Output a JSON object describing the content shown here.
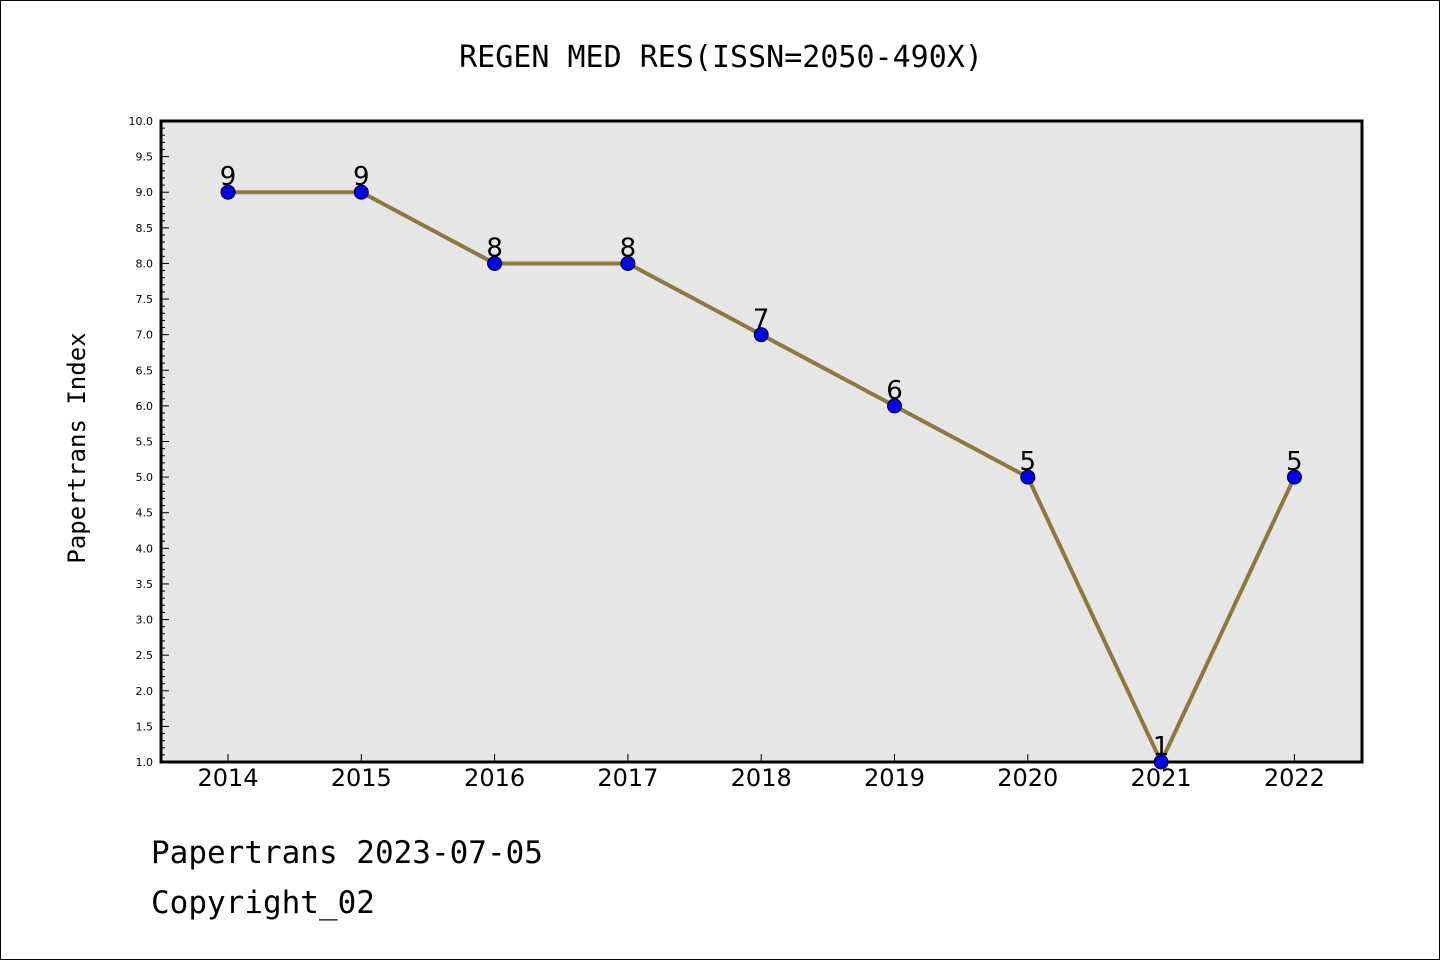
{
  "chart_data": {
    "type": "line",
    "title": "REGEN MED RES(ISSN=2050-490X)",
    "xlabel": "",
    "ylabel": "Papertrans Index",
    "categories": [
      "2014",
      "2015",
      "2016",
      "2017",
      "2018",
      "2019",
      "2020",
      "2021",
      "2022"
    ],
    "series": [
      {
        "values": [
          9,
          9,
          8,
          8,
          7,
          6,
          5,
          1,
          5
        ]
      }
    ],
    "data_labels": [
      "9",
      "9",
      "8",
      "8",
      "7",
      "6",
      "5",
      "1",
      "5"
    ],
    "ylim": [
      1.0,
      10.0
    ],
    "yticks": [
      "1.0",
      "1.5",
      "2.0",
      "2.5",
      "3.0",
      "3.5",
      "4.0",
      "4.5",
      "5.0",
      "5.5",
      "6.0",
      "6.5",
      "7.0",
      "7.5",
      "8.0",
      "8.5",
      "9.0",
      "9.5",
      "10.0"
    ],
    "grid": false,
    "colors": {
      "plot_background": "#e6e6e6",
      "line": "#8b7a3a",
      "marker": "#0000ff"
    }
  },
  "footer": {
    "line1": "Papertrans 2023-07-05",
    "line2": "Copyright_02"
  }
}
